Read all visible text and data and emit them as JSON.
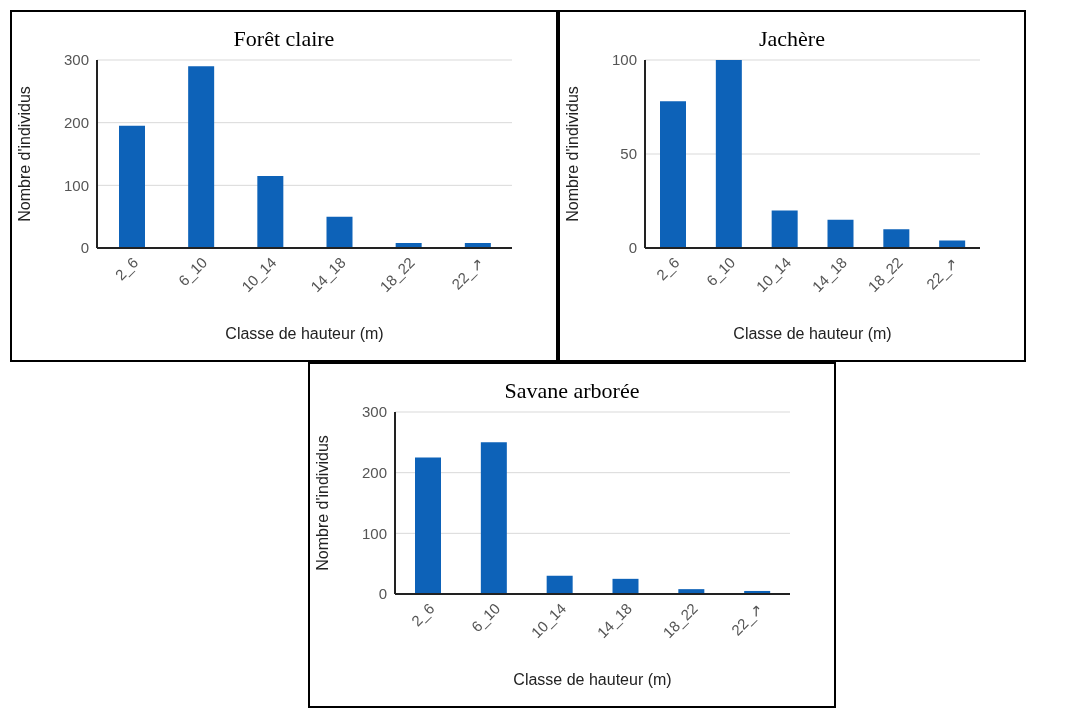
{
  "chart_data": [
    {
      "type": "bar",
      "title": "Forêt claire",
      "xlabel": "Classe de hauteur (m)",
      "ylabel": "Nombre d'individus",
      "categories": [
        "2_6",
        "6_10",
        "10_14",
        "14_18",
        "18_22",
        "22_↗"
      ],
      "values": [
        195,
        290,
        115,
        50,
        8,
        8
      ],
      "color": "#0d62b8",
      "ylim": [
        0,
        300
      ],
      "yticks": [
        0,
        100,
        200,
        300
      ],
      "grid": "y"
    },
    {
      "type": "bar",
      "title": "Jachère",
      "xlabel": "Classe de hauteur (m)",
      "ylabel": "Nombre d'individus",
      "categories": [
        "2_6",
        "6_10",
        "10_14",
        "14_18",
        "18_22",
        "22_↗"
      ],
      "values": [
        78,
        100,
        20,
        15,
        10,
        4
      ],
      "color": "#0d62b8",
      "ylim": [
        0,
        100
      ],
      "yticks": [
        0,
        50,
        100
      ],
      "grid": "y"
    },
    {
      "type": "bar",
      "title": "Savane arborée",
      "xlabel": "Classe de hauteur (m)",
      "ylabel": "Nombre d'individus",
      "categories": [
        "2_6",
        "6_10",
        "10_14",
        "14_18",
        "18_22",
        "22_↗"
      ],
      "values": [
        225,
        250,
        30,
        25,
        8,
        5
      ],
      "color": "#0d62b8",
      "ylim": [
        0,
        300
      ],
      "yticks": [
        0,
        100,
        200,
        300
      ],
      "grid": "y"
    }
  ]
}
